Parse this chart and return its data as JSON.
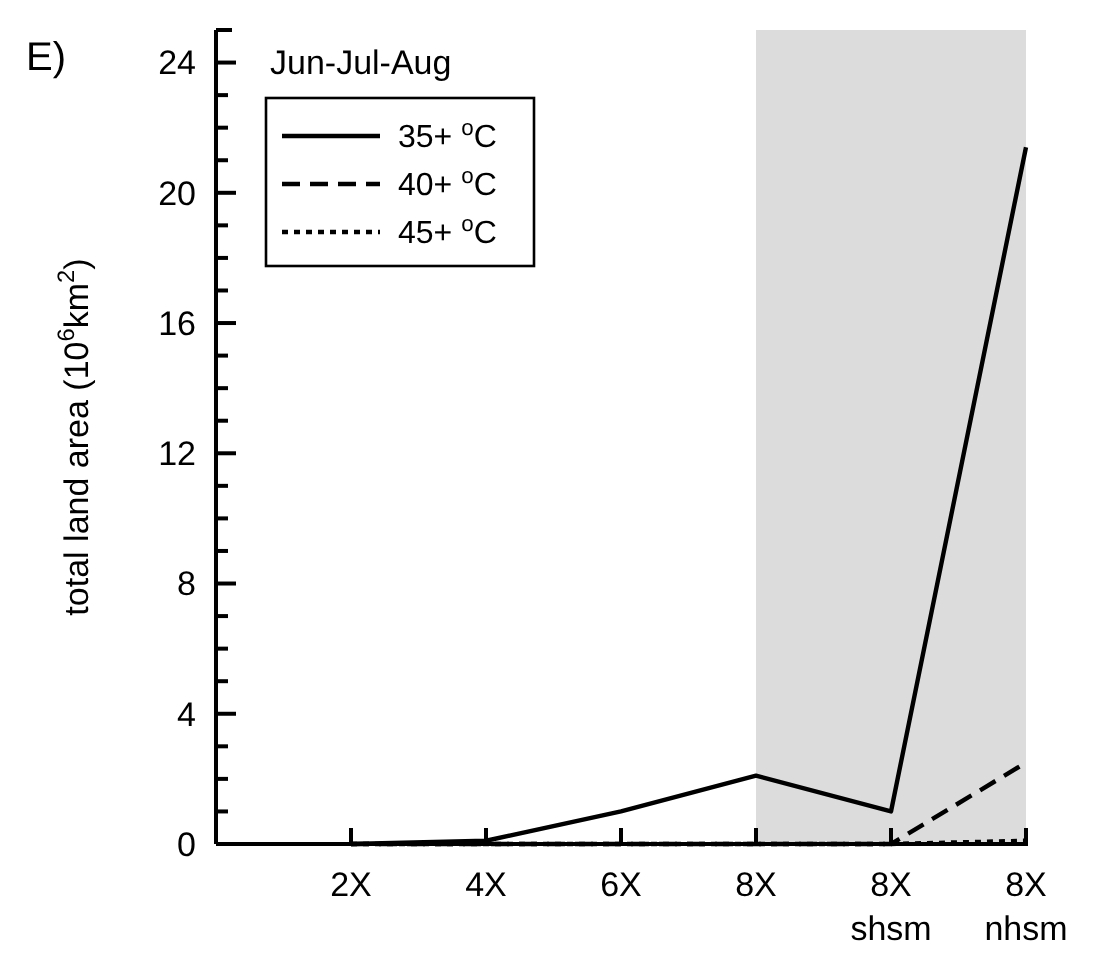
{
  "chart_data": {
    "type": "line",
    "title": "Jun-Jul-Aug",
    "ylabel": "total land area (10$^{6}$km$^{2}$)",
    "annotations": [
      "E)"
    ],
    "categories": [
      null,
      "2X",
      "4X",
      "6X",
      "8X",
      "8X shsm",
      "8X nhsm"
    ],
    "series": [
      {
        "name": "35+ $^{o}$C",
        "color": "#000000",
        "line_style": "solid",
        "values": [
          null,
          0,
          0.1,
          1.0,
          2.1,
          1.0,
          21.4
        ]
      },
      {
        "name": "40+ $^{o}$C",
        "color": "#000000",
        "line_style": "dashed",
        "values": [
          null,
          0,
          0,
          0,
          0,
          0,
          2.5
        ]
      },
      {
        "name": "45+ $^{o}$C",
        "color": "#000000",
        "line_style": "dotted",
        "values": [
          null,
          0,
          0,
          0,
          0,
          0,
          0.1
        ]
      }
    ],
    "ylim": [
      0,
      25
    ],
    "yticks": [
      0,
      {
        "value": 1,
        "label": null
      },
      {
        "value": 2,
        "label": null
      },
      {
        "value": 3,
        "label": null
      },
      4,
      {
        "value": 5,
        "label": null
      },
      {
        "value": 6,
        "label": null
      },
      {
        "value": 7,
        "label": null
      },
      8,
      {
        "value": 9,
        "label": null
      },
      {
        "value": 10,
        "label": null
      },
      {
        "value": 11,
        "label": null
      },
      12,
      {
        "value": 13,
        "label": null
      },
      {
        "value": 14,
        "label": null
      },
      {
        "value": 15,
        "label": null
      },
      16,
      {
        "value": 17,
        "label": null
      },
      {
        "value": 18,
        "label": null
      },
      {
        "value": 19,
        "label": null
      },
      20,
      {
        "value": 21,
        "label": null
      },
      {
        "value": 22,
        "label": null
      },
      {
        "value": 23,
        "label": null
      },
      24
    ],
    "bands": [
      {
        "axis": "x",
        "from": "8X",
        "to": "8X nhsm",
        "color": "#dcdcdc"
      }
    ],
    "legend": "top left",
    "grid": false
  }
}
